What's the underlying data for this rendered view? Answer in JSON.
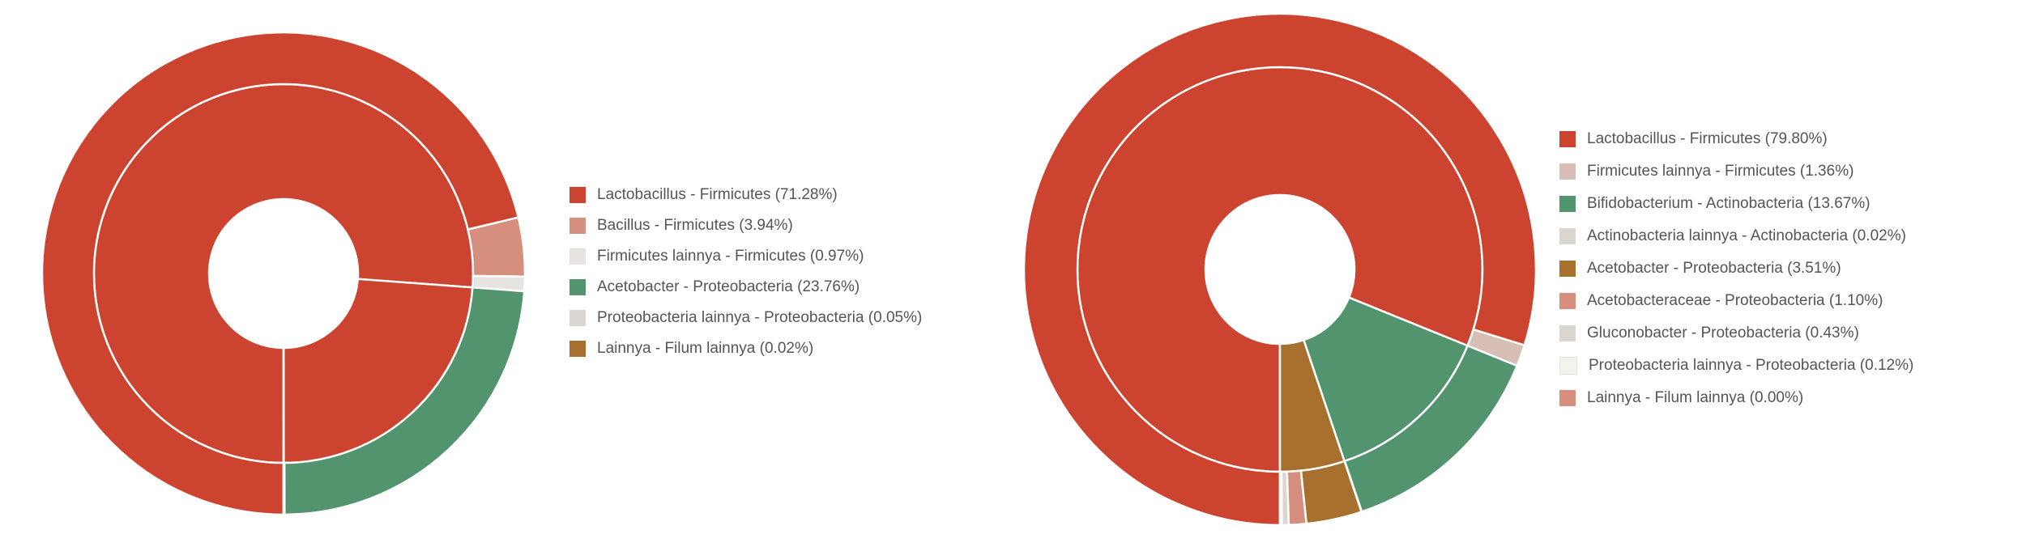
{
  "chart_data": [
    {
      "type": "sunburst",
      "inner_ring": [
        {
          "name": "Firmicutes",
          "value": 76.19,
          "color": "#cc4430"
        },
        {
          "name": "Proteobacteria",
          "value": 23.81,
          "color": "#cc4430"
        },
        {
          "name": "Filum lainnya",
          "value": 0.02,
          "color": "#cc4430"
        }
      ],
      "series": [
        {
          "name": "Lactobacillus - Firmicutes",
          "value": 71.28,
          "label": "Lactobacillus - Firmicutes (71.28%)",
          "color": "#cc4430"
        },
        {
          "name": "Bacillus - Firmicutes",
          "value": 3.94,
          "label": "Bacillus - Firmicutes (3.94%)",
          "color": "#d68e7e"
        },
        {
          "name": "Firmicutes lainnya - Firmicutes",
          "value": 0.97,
          "label": "Firmicutes lainnya - Firmicutes (0.97%)",
          "color": "#e6e3e0"
        },
        {
          "name": "Acetobacter - Proteobacteria",
          "value": 23.76,
          "label": "Acetobacter - Proteobacteria (23.76%)",
          "color": "#52946e"
        },
        {
          "name": "Proteobacteria lainnya - Proteobacteria",
          "value": 0.05,
          "label": "Proteobacteria lainnya - Proteobacteria (0.05%)",
          "color": "#dcd6d2"
        },
        {
          "name": "Lainnya - Filum lainnya",
          "value": 0.02,
          "label": "Lainnya - Filum lainnya (0.02%)",
          "color": "#a7702f"
        }
      ]
    },
    {
      "type": "sunburst",
      "inner_ring": [
        {
          "name": "Firmicutes",
          "value": 81.16,
          "color": "#cc4430"
        },
        {
          "name": "Actinobacteria",
          "value": 13.69,
          "color": "#52946e"
        },
        {
          "name": "Proteobacteria",
          "value": 5.16,
          "color": "#a7702f"
        },
        {
          "name": "Filum lainnya",
          "value": 0.0,
          "color": "#d68e7e"
        }
      ],
      "series": [
        {
          "name": "Lactobacillus - Firmicutes",
          "value": 79.8,
          "label": "Lactobacillus - Firmicutes (79.80%)",
          "color": "#cc4430"
        },
        {
          "name": "Firmicutes lainnya - Firmicutes",
          "value": 1.36,
          "label": "Firmicutes lainnya - Firmicutes (1.36%)",
          "color": "#d7bfb6"
        },
        {
          "name": "Bifidobacterium - Actinobacteria",
          "value": 13.67,
          "label": "Bifidobacterium - Actinobacteria (13.67%)",
          "color": "#52946e"
        },
        {
          "name": "Actinobacteria lainnya - Actinobacteria",
          "value": 0.02,
          "label": "Actinobacteria lainnya - Actinobacteria (0.02%)",
          "color": "#dcd6d2"
        },
        {
          "name": "Acetobacter - Proteobacteria",
          "value": 3.51,
          "label": "Acetobacter - Proteobacteria (3.51%)",
          "color": "#a7702f"
        },
        {
          "name": "Acetobacteraceae - Proteobacteria",
          "value": 1.1,
          "label": "Acetobacteraceae - Proteobacteria (1.10%)",
          "color": "#d68e7e"
        },
        {
          "name": "Gluconobacter - Proteobacteria",
          "value": 0.43,
          "label": "Gluconobacter - Proteobacteria (0.43%)",
          "color": "#dcd6d2"
        },
        {
          "name": "Proteobacteria lainnya - Proteobacteria",
          "value": 0.12,
          "label": "Proteobacteria lainnya - Proteobacteria (0.12%)",
          "color": "#f4f2ee"
        },
        {
          "name": "Lainnya - Filum lainnya",
          "value": 0.0,
          "label": "Lainnya - Filum lainnya (0.00%)",
          "color": "#d68e7e"
        }
      ]
    }
  ]
}
